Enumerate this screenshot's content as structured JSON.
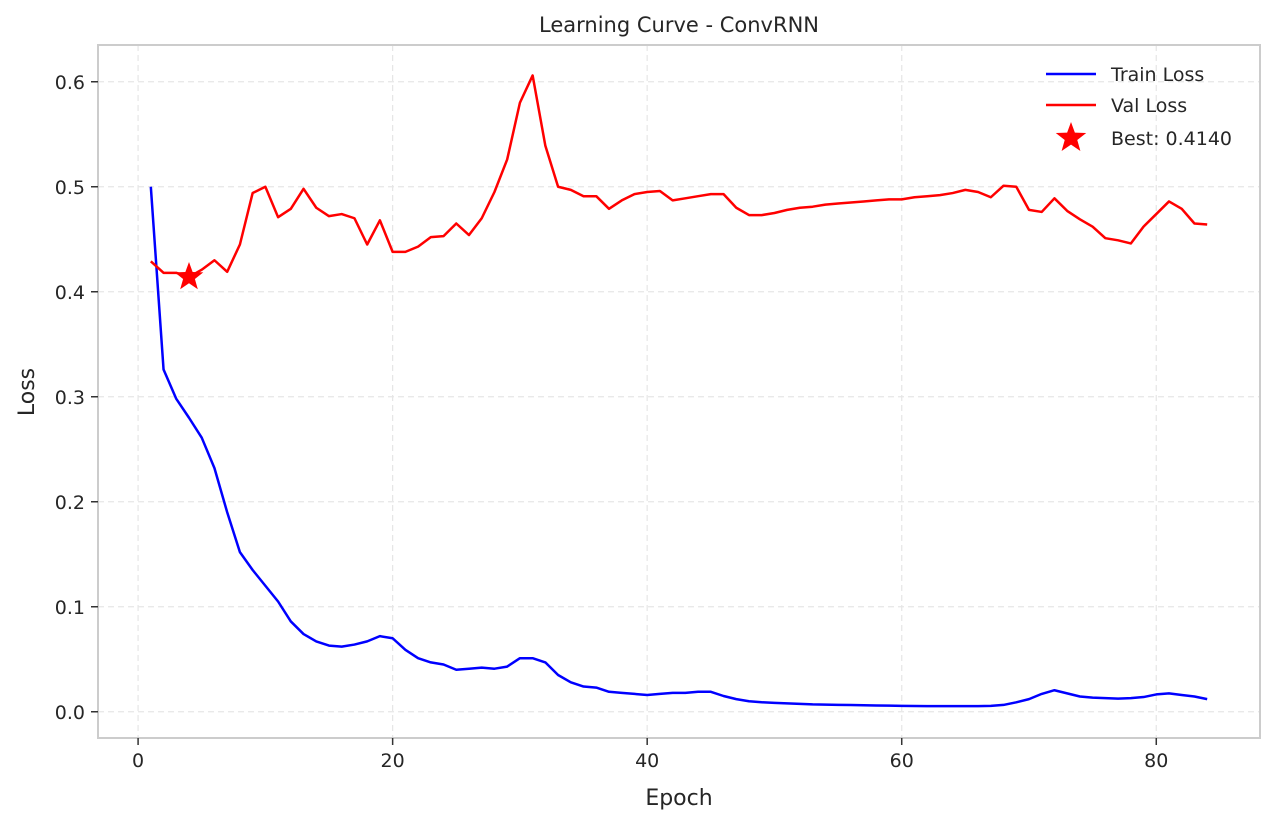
{
  "chart_data": {
    "type": "line",
    "title": "Learning Curve - ConvRNN",
    "xlabel": "Epoch",
    "ylabel": "Loss",
    "xlim": [
      -3.15,
      88.15
    ],
    "ylim": [
      -0.025,
      0.635
    ],
    "xticks": [
      0,
      20,
      40,
      60,
      80
    ],
    "xtick_labels": [
      "0",
      "20",
      "40",
      "60",
      "80"
    ],
    "yticks": [
      0.0,
      0.1,
      0.2,
      0.3,
      0.4,
      0.5,
      0.6
    ],
    "ytick_labels": [
      "0.0",
      "0.1",
      "0.2",
      "0.3",
      "0.4",
      "0.5",
      "0.6"
    ],
    "grid": true,
    "legend_position": "top-right",
    "series": [
      {
        "name": "Train Loss",
        "color": "#0000ff",
        "x": [
          1,
          2,
          3,
          4,
          5,
          6,
          7,
          8,
          9,
          10,
          11,
          12,
          13,
          14,
          15,
          16,
          17,
          18,
          19,
          20,
          21,
          22,
          23,
          24,
          25,
          26,
          27,
          28,
          29,
          30,
          31,
          32,
          33,
          34,
          35,
          36,
          37,
          38,
          39,
          40,
          41,
          42,
          43,
          44,
          45,
          46,
          47,
          48,
          49,
          50,
          51,
          52,
          53,
          54,
          55,
          56,
          57,
          58,
          59,
          60,
          61,
          62,
          63,
          64,
          65,
          66,
          67,
          68,
          69,
          70,
          71,
          72,
          73,
          74,
          75,
          76,
          77,
          78,
          79,
          80,
          81,
          82,
          83,
          84
        ],
        "values": [
          0.5,
          0.326,
          0.298,
          0.28,
          0.261,
          0.232,
          0.19,
          0.152,
          0.135,
          0.12,
          0.105,
          0.086,
          0.074,
          0.067,
          0.063,
          0.062,
          0.064,
          0.067,
          0.072,
          0.07,
          0.059,
          0.051,
          0.047,
          0.045,
          0.04,
          0.041,
          0.042,
          0.041,
          0.043,
          0.051,
          0.051,
          0.047,
          0.035,
          0.028,
          0.024,
          0.023,
          0.019,
          0.018,
          0.017,
          0.016,
          0.017,
          0.018,
          0.018,
          0.019,
          0.019,
          0.015,
          0.012,
          0.01,
          0.009,
          0.0085,
          0.008,
          0.0075,
          0.007,
          0.0068,
          0.0066,
          0.0064,
          0.0062,
          0.006,
          0.0058,
          0.0056,
          0.0055,
          0.0054,
          0.0053,
          0.0053,
          0.0053,
          0.0054,
          0.0056,
          0.0065,
          0.009,
          0.012,
          0.017,
          0.0205,
          0.0175,
          0.0145,
          0.0135,
          0.013,
          0.0125,
          0.013,
          0.014,
          0.0165,
          0.0175,
          0.016,
          0.0145,
          0.012
        ]
      },
      {
        "name": "Val Loss",
        "color": "#ff0000",
        "x": [
          1,
          2,
          3,
          4,
          5,
          6,
          7,
          8,
          9,
          10,
          11,
          12,
          13,
          14,
          15,
          16,
          17,
          18,
          19,
          20,
          21,
          22,
          23,
          24,
          25,
          26,
          27,
          28,
          29,
          30,
          31,
          32,
          33,
          34,
          35,
          36,
          37,
          38,
          39,
          40,
          41,
          42,
          43,
          44,
          45,
          46,
          47,
          48,
          49,
          50,
          51,
          52,
          53,
          54,
          55,
          56,
          57,
          58,
          59,
          60,
          61,
          62,
          63,
          64,
          65,
          66,
          67,
          68,
          69,
          70,
          71,
          72,
          73,
          74,
          75,
          76,
          77,
          78,
          79,
          80,
          81,
          82,
          83,
          84
        ],
        "values": [
          0.429,
          0.418,
          0.418,
          0.414,
          0.421,
          0.43,
          0.419,
          0.445,
          0.494,
          0.5,
          0.471,
          0.479,
          0.498,
          0.48,
          0.472,
          0.474,
          0.47,
          0.445,
          0.468,
          0.438,
          0.438,
          0.443,
          0.452,
          0.453,
          0.465,
          0.454,
          0.47,
          0.495,
          0.526,
          0.58,
          0.606,
          0.539,
          0.5,
          0.497,
          0.491,
          0.491,
          0.479,
          0.487,
          0.493,
          0.495,
          0.496,
          0.487,
          0.489,
          0.491,
          0.493,
          0.493,
          0.48,
          0.473,
          0.473,
          0.475,
          0.478,
          0.48,
          0.481,
          0.483,
          0.484,
          0.485,
          0.486,
          0.487,
          0.488,
          0.488,
          0.49,
          0.491,
          0.492,
          0.494,
          0.497,
          0.495,
          0.49,
          0.501,
          0.5,
          0.478,
          0.476,
          0.489,
          0.477,
          0.469,
          0.462,
          0.451,
          0.449,
          0.446,
          0.462,
          0.474,
          0.486,
          0.479,
          0.465,
          0.464
        ]
      }
    ],
    "best_marker": {
      "label": "Best: 0.4140",
      "x": 4,
      "y": 0.414,
      "color": "#ff0000",
      "marker": "star"
    }
  }
}
